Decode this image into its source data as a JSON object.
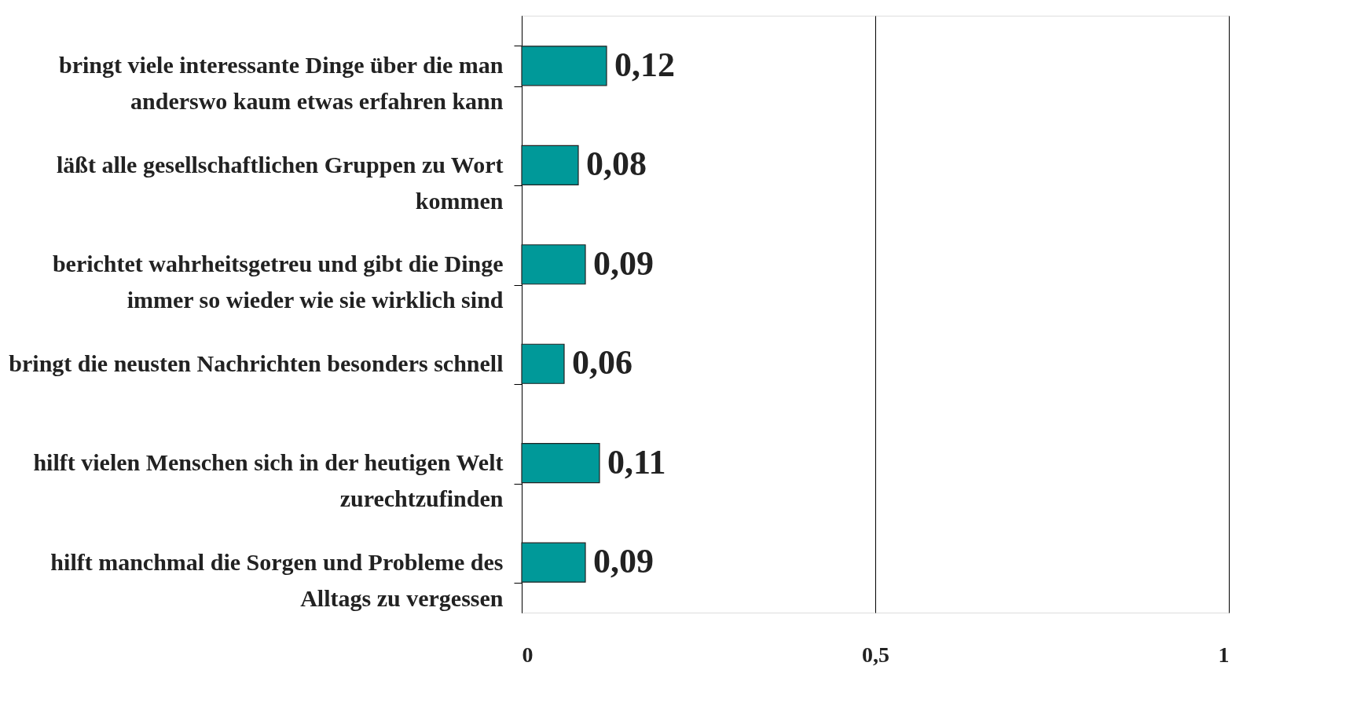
{
  "chart_data": {
    "type": "bar",
    "orientation": "horizontal",
    "categories": [
      "bringt viele interessante Dinge über die man anderswo kaum etwas erfahren kann",
      "läßt alle gesellschaftlichen Gruppen zu Wort kommen",
      "berichtet wahrheitsgetreu und gibt die Dinge immer so wieder wie sie wirklich sind",
      "bringt die neusten Nachrichten besonders schnell",
      "hilft vielen Menschen sich in der heutigen Welt zurechtzufinden",
      "hilft manchmal die Sorgen und Probleme des Alltags zu vergessen"
    ],
    "values": [
      0.12,
      0.08,
      0.09,
      0.06,
      0.11,
      0.09
    ],
    "value_labels": [
      "0,12",
      "0,08",
      "0,09",
      "0,06",
      "0,11",
      "0,09"
    ],
    "color": "#009999",
    "xlim": [
      0,
      1
    ],
    "xticks": [
      0,
      {
        "value": 0.5,
        "label": "0,5"
      },
      1
    ],
    "grid": "x"
  }
}
